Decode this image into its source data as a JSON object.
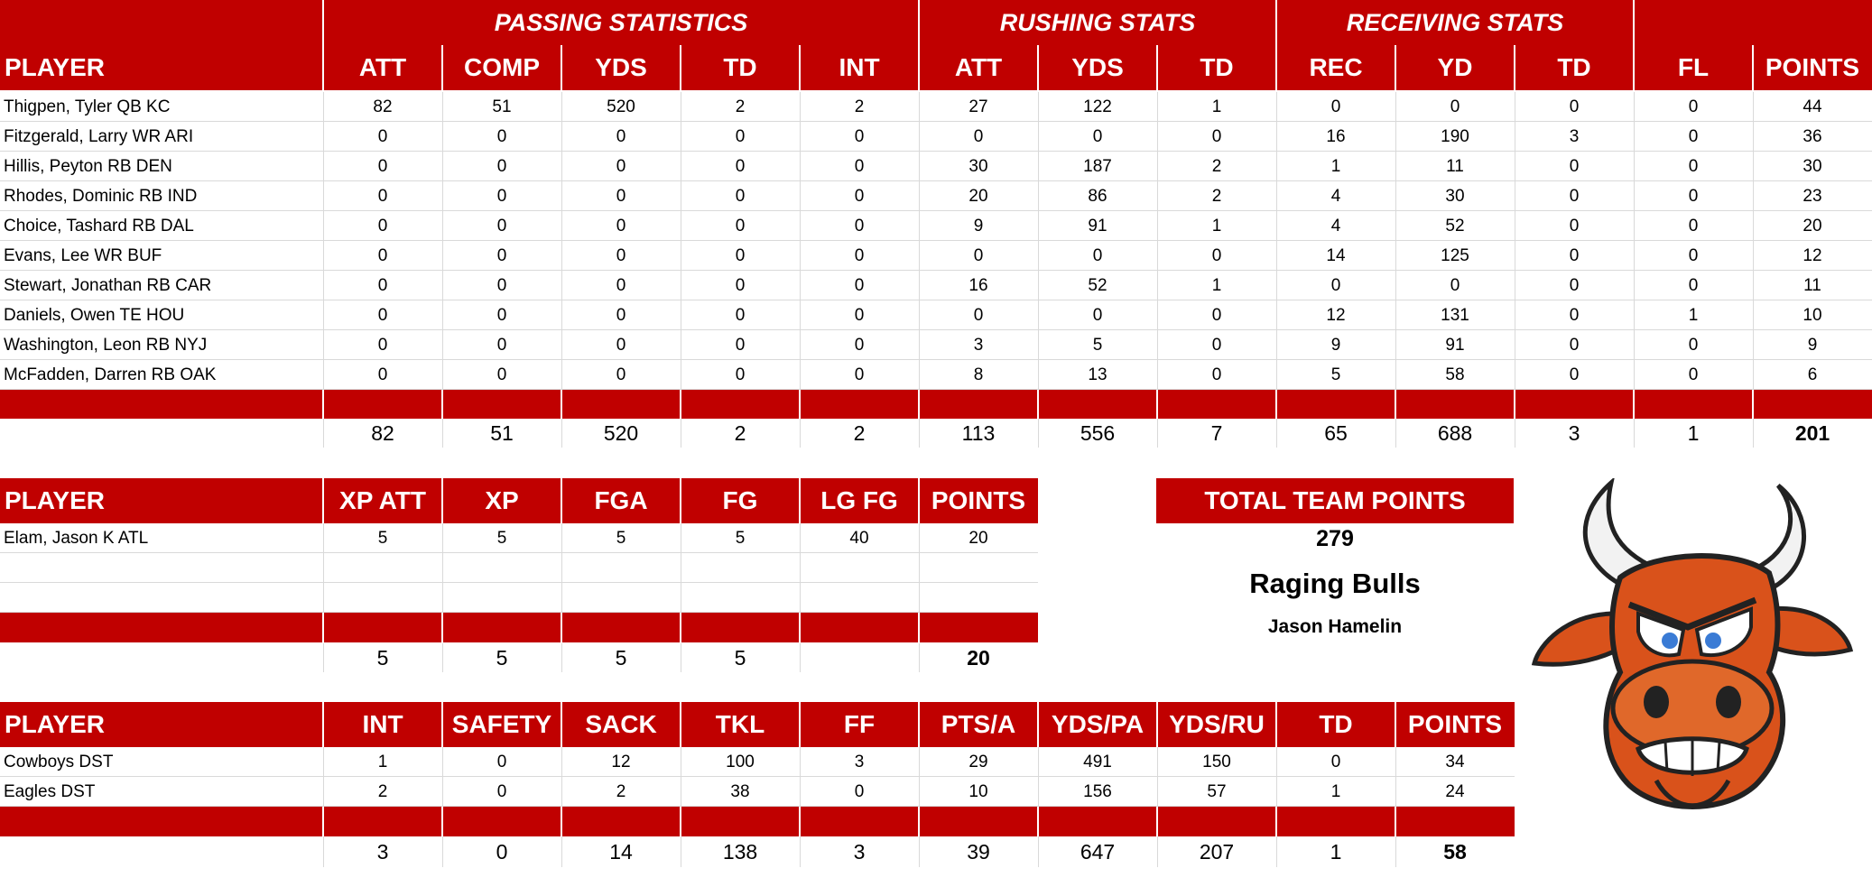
{
  "main_table": {
    "sections": [
      {
        "label": "PASSING STATISTICS",
        "col_start": 1,
        "col_span": 5
      },
      {
        "label": "RUSHING STATS",
        "col_start": 6,
        "col_span": 3
      },
      {
        "label": "RECEIVING STATS",
        "col_start": 9,
        "col_span": 3
      },
      {
        "label": "",
        "col_start": 12,
        "col_span": 2
      }
    ],
    "headers": [
      "PLAYER",
      "ATT",
      "COMP",
      "YDS",
      "TD",
      "INT",
      "ATT",
      "YDS",
      "TD",
      "REC",
      "YD",
      "TD",
      "FL",
      "POINTS"
    ],
    "rows": [
      [
        "Thigpen, Tyler QB KC",
        "82",
        "51",
        "520",
        "2",
        "2",
        "27",
        "122",
        "1",
        "0",
        "0",
        "0",
        "0",
        "44"
      ],
      [
        "Fitzgerald, Larry WR ARI",
        "0",
        "0",
        "0",
        "0",
        "0",
        "0",
        "0",
        "0",
        "16",
        "190",
        "3",
        "0",
        "36"
      ],
      [
        "Hillis, Peyton RB DEN",
        "0",
        "0",
        "0",
        "0",
        "0",
        "30",
        "187",
        "2",
        "1",
        "11",
        "0",
        "0",
        "30"
      ],
      [
        "Rhodes, Dominic RB IND",
        "0",
        "0",
        "0",
        "0",
        "0",
        "20",
        "86",
        "2",
        "4",
        "30",
        "0",
        "0",
        "23"
      ],
      [
        "Choice, Tashard RB DAL",
        "0",
        "0",
        "0",
        "0",
        "0",
        "9",
        "91",
        "1",
        "4",
        "52",
        "0",
        "0",
        "20"
      ],
      [
        "Evans, Lee WR BUF",
        "0",
        "0",
        "0",
        "0",
        "0",
        "0",
        "0",
        "0",
        "14",
        "125",
        "0",
        "0",
        "12"
      ],
      [
        "Stewart, Jonathan RB CAR",
        "0",
        "0",
        "0",
        "0",
        "0",
        "16",
        "52",
        "1",
        "0",
        "0",
        "0",
        "0",
        "11"
      ],
      [
        "Daniels, Owen TE HOU",
        "0",
        "0",
        "0",
        "0",
        "0",
        "0",
        "0",
        "0",
        "12",
        "131",
        "0",
        "1",
        "10"
      ],
      [
        "Washington, Leon RB NYJ",
        "0",
        "0",
        "0",
        "0",
        "0",
        "3",
        "5",
        "0",
        "9",
        "91",
        "0",
        "0",
        "9"
      ],
      [
        "McFadden, Darren RB OAK",
        "0",
        "0",
        "0",
        "0",
        "0",
        "8",
        "13",
        "0",
        "5",
        "58",
        "0",
        "0",
        "6"
      ]
    ],
    "totals": [
      "",
      "82",
      "51",
      "520",
      "2",
      "2",
      "113",
      "556",
      "7",
      "65",
      "688",
      "3",
      "1",
      "201"
    ]
  },
  "kicker_table": {
    "headers": [
      "PLAYER",
      "XP ATT",
      "XP",
      "FGA",
      "FG",
      "LG FG",
      "POINTS"
    ],
    "rows": [
      [
        "Elam, Jason K ATL",
        "5",
        "5",
        "5",
        "5",
        "40",
        "20"
      ],
      [
        "",
        "",
        "",
        "",
        "",
        "",
        ""
      ],
      [
        "",
        "",
        "",
        "",
        "",
        "",
        ""
      ]
    ],
    "totals": [
      "",
      "5",
      "5",
      "5",
      "5",
      "",
      "20"
    ]
  },
  "defense_table": {
    "headers": [
      "PLAYER",
      "INT",
      "SAFETY",
      "SACK",
      "TKL",
      "FF",
      "PTS/A",
      "YDS/PA",
      "YDS/RU",
      "TD",
      "POINTS"
    ],
    "rows": [
      [
        "Cowboys DST",
        "1",
        "0",
        "12",
        "100",
        "3",
        "29",
        "491",
        "150",
        "0",
        "34"
      ],
      [
        "Eagles DST",
        "2",
        "0",
        "2",
        "38",
        "0",
        "10",
        "156",
        "57",
        "1",
        "24"
      ]
    ],
    "totals": [
      "",
      "3",
      "0",
      "14",
      "138",
      "3",
      "39",
      "647",
      "207",
      "1",
      "58"
    ]
  },
  "team_summary": {
    "label": "TOTAL TEAM POINTS",
    "points": "279",
    "team_name": "Raging Bulls",
    "owner": "Jason Hamelin"
  },
  "logo": {
    "icon": "angry-bull-mascot-icon"
  },
  "colors": {
    "header_red": "#c00000",
    "grid": "#d9d9d9",
    "logo_orange": "#d9521b"
  }
}
